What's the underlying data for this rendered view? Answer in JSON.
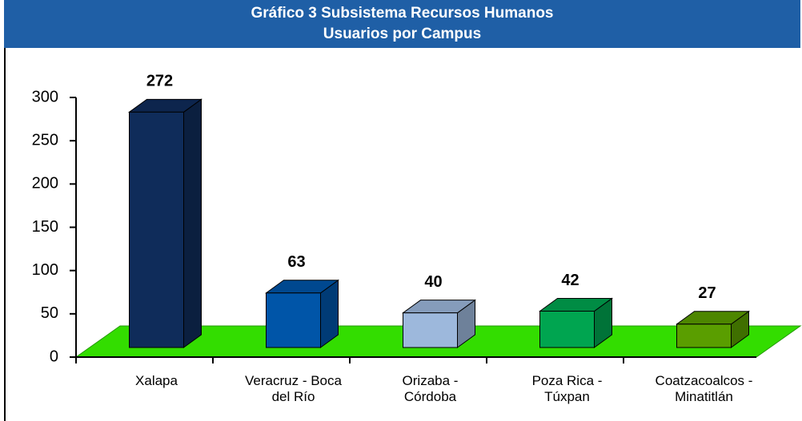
{
  "chart_data": {
    "type": "bar3d",
    "title": "Gráfico 3 Subsistema Recursos Humanos",
    "subtitle": "Usuarios por Campus",
    "categories": [
      "Xalapa",
      "Veracruz - Boca del Río",
      "Orizaba - Córdoba",
      "Poza Rica - Túxpan",
      "Coatzacoalcos - Minatitlán"
    ],
    "values": [
      272,
      63,
      40,
      42,
      27
    ],
    "colors": [
      "#0f2c5a",
      "#0055a8",
      "#9db8dc",
      "#00a550",
      "#5a9e00"
    ],
    "floor_color": "#33dd00",
    "ylim": [
      0,
      300
    ],
    "yticks": [
      0,
      50,
      100,
      150,
      200,
      250,
      300
    ]
  }
}
